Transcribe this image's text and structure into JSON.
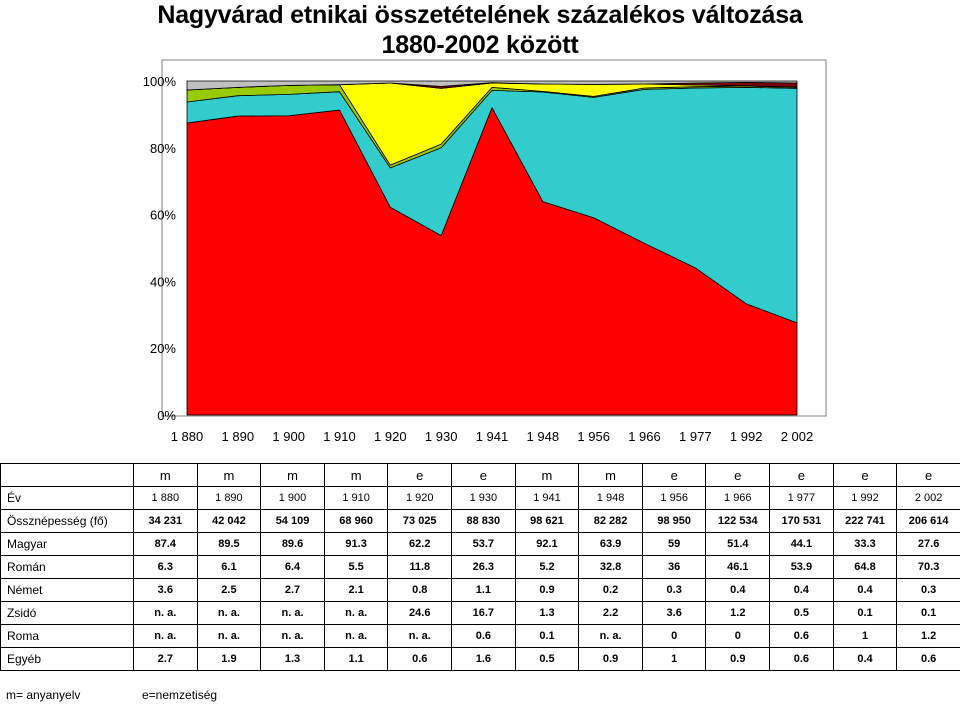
{
  "title": {
    "line1": "Nagyvárad etnikai összetételének százalékos változása",
    "line2": "1880-2002 között"
  },
  "chart_data": {
    "type": "area",
    "stacked": "percent",
    "x": [
      "1 880",
      "1 890",
      "1 900",
      "1 910",
      "1 920",
      "1 930",
      "1 941",
      "1 948",
      "1 956",
      "1 966",
      "1 977",
      "1 992",
      "2 002"
    ],
    "y_ticks": [
      "0%",
      "20%",
      "40%",
      "60%",
      "80%",
      "100%"
    ],
    "ylim": [
      0,
      100
    ],
    "series": [
      {
        "key": "magyar",
        "values": [
          87.4,
          89.5,
          89.6,
          91.3,
          62.2,
          53.7,
          92.1,
          63.9,
          59,
          51.4,
          44.1,
          33.3,
          27.6
        ]
      },
      {
        "key": "roman",
        "values": [
          6.3,
          6.1,
          6.4,
          5.5,
          11.8,
          26.3,
          5.2,
          32.8,
          36,
          46.1,
          53.9,
          64.8,
          70.3
        ]
      },
      {
        "key": "nemet",
        "values": [
          3.6,
          2.5,
          2.7,
          2.1,
          0.8,
          1.1,
          0.9,
          0.2,
          0.3,
          0.4,
          0.4,
          0.4,
          0.3
        ]
      },
      {
        "key": "zsido",
        "values": [
          0,
          0,
          0,
          0,
          24.6,
          16.7,
          1.3,
          2.2,
          3.6,
          1.2,
          0.5,
          0.1,
          0.1
        ]
      },
      {
        "key": "roma",
        "values": [
          0,
          0,
          0,
          0,
          0,
          0.6,
          0.1,
          0,
          0,
          0,
          0.6,
          1,
          1.2
        ]
      },
      {
        "key": "egyeb",
        "values": [
          2.7,
          1.9,
          1.3,
          1.1,
          0.6,
          1.6,
          0.5,
          0.9,
          1,
          0.9,
          0.6,
          0.4,
          0.6
        ]
      }
    ],
    "colors": {
      "magyar": "#ff0000",
      "roman": "#33cccc",
      "nemet": "#99cc00",
      "zsido": "#ffff00",
      "roma": "#800000",
      "egyeb": "#c0c0c0"
    },
    "plot_background": "#ffffff",
    "grid": false
  },
  "table": {
    "source_row": [
      "",
      "m",
      "m",
      "m",
      "m",
      "e",
      "e",
      "m",
      "m",
      "e",
      "e",
      "e",
      "e",
      "e"
    ],
    "rows": [
      {
        "label": "Év",
        "cells": [
          "1 880",
          "1 890",
          "1 900",
          "1 910",
          "1 920",
          "1 930",
          "1 941",
          "1 948",
          "1 956",
          "1 966",
          "1 977",
          "1 992",
          "2 002"
        ]
      },
      {
        "label": "Össznépesség (fő)",
        "cells": [
          "34 231",
          "42 042",
          "54 109",
          "68 960",
          "73 025",
          "88 830",
          "98 621",
          "82 282",
          "98 950",
          "122 534",
          "170 531",
          "222 741",
          "206 614"
        ]
      },
      {
        "label": "Magyar",
        "cells": [
          "87.4",
          "89.5",
          "89.6",
          "91.3",
          "62.2",
          "53.7",
          "92.1",
          "63.9",
          "59",
          "51.4",
          "44.1",
          "33.3",
          "27.6"
        ]
      },
      {
        "label": "Román",
        "cells": [
          "6.3",
          "6.1",
          "6.4",
          "5.5",
          "11.8",
          "26.3",
          "5.2",
          "32.8",
          "36",
          "46.1",
          "53.9",
          "64.8",
          "70.3"
        ]
      },
      {
        "label": "Német",
        "cells": [
          "3.6",
          "2.5",
          "2.7",
          "2.1",
          "0.8",
          "1.1",
          "0.9",
          "0.2",
          "0.3",
          "0.4",
          "0.4",
          "0.4",
          "0.3"
        ]
      },
      {
        "label": "Zsidó",
        "cells": [
          "n. a.",
          "n. a.",
          "n. a.",
          "n. a.",
          "24.6",
          "16.7",
          "1.3",
          "2.2",
          "3.6",
          "1.2",
          "0.5",
          "0.1",
          "0.1"
        ]
      },
      {
        "label": "Roma",
        "cells": [
          "n. a.",
          "n. a.",
          "n. a.",
          "n. a.",
          "n. a.",
          "0.6",
          "0.1",
          "n. a.",
          "0",
          "0",
          "0.6",
          "1",
          "1.2"
        ]
      },
      {
        "label": "Egyéb",
        "cells": [
          "2.7",
          "1.9",
          "1.3",
          "1.1",
          "0.6",
          "1.6",
          "0.5",
          "0.9",
          "1",
          "0.9",
          "0.6",
          "0.4",
          "0.6"
        ]
      }
    ]
  },
  "footnotes": {
    "m": "m= anyanyelv",
    "e": "e=nemzetiség"
  }
}
